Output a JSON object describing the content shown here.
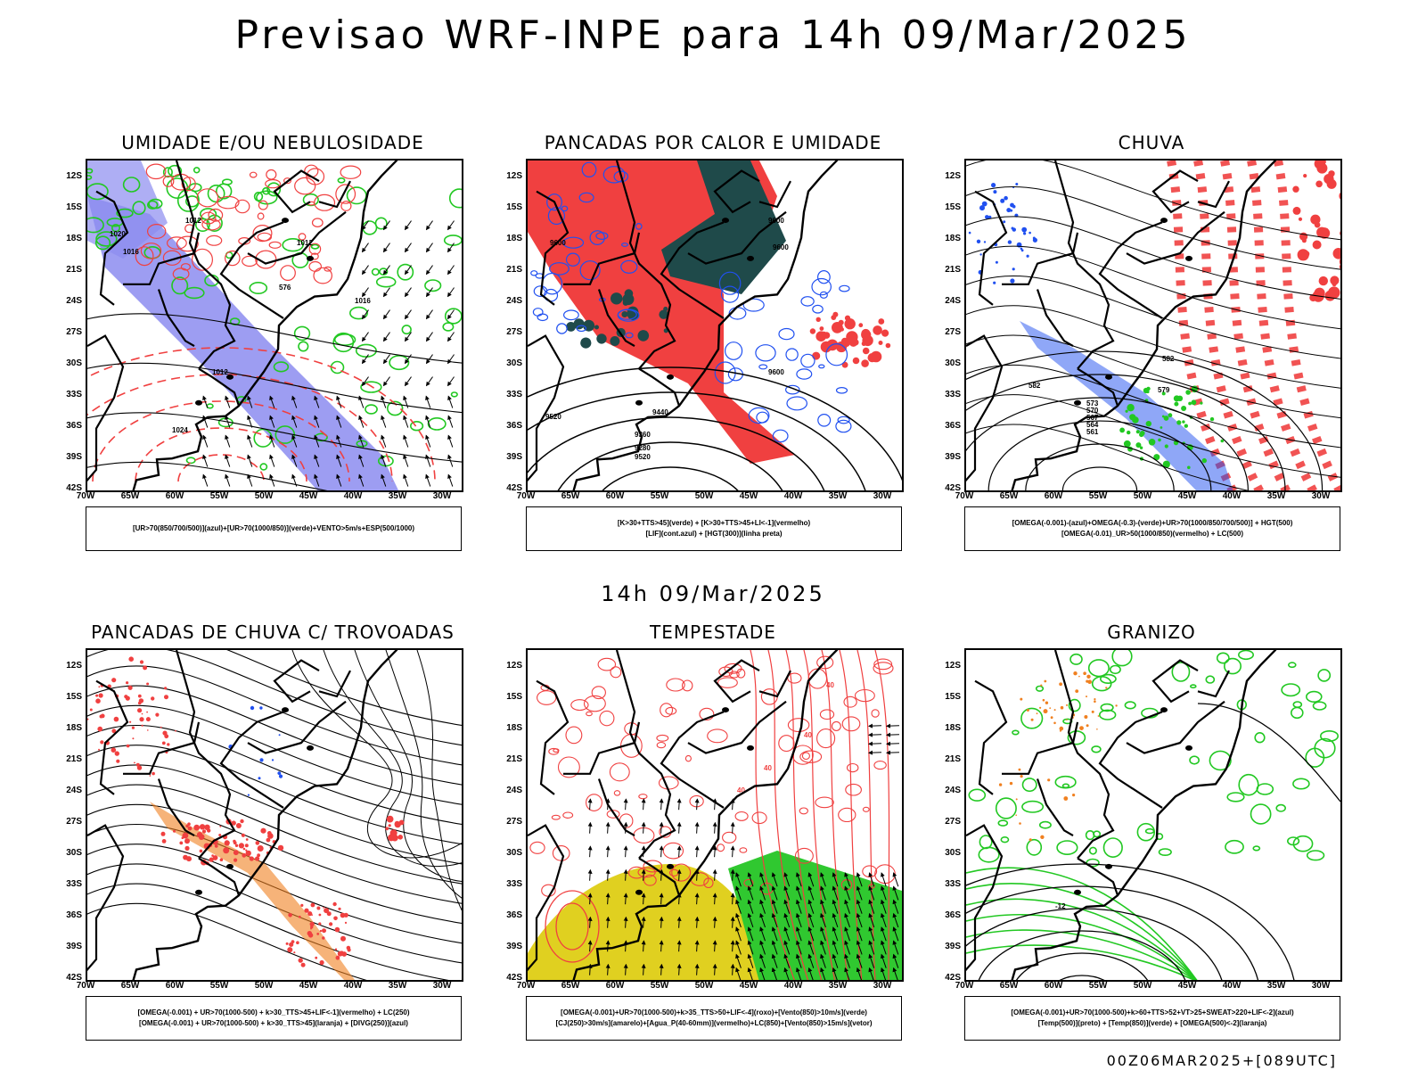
{
  "header": {
    "title": "Previsao WRF-INPE  para 14h 09/Mar/2025"
  },
  "mid_timestamp": "14h 09/Mar/2025",
  "footer": {
    "run_code": "00Z06MAR2025+[089UTC]"
  },
  "axes": {
    "lat_labels": [
      "12S",
      "15S",
      "18S",
      "21S",
      "24S",
      "27S",
      "30S",
      "33S",
      "36S",
      "39S",
      "42S"
    ],
    "lon_labels": [
      "70W",
      "65W",
      "60W",
      "55W",
      "50W",
      "45W",
      "40W",
      "35W",
      "30W"
    ]
  },
  "colors": {
    "blue_humidity": "#8c8cf0",
    "green_contour": "#22c822",
    "red_field": "#f04040",
    "dark_teal": "#1f4a4a",
    "blue_contour": "#2050f0",
    "yellow_jet": "#e0d020",
    "orange_hail": "#f08020"
  },
  "panels": [
    {
      "id": "umidade",
      "title": "UMIDADE E/OU NEBULOSIDADE",
      "legend": [
        "[UR>70(850/700/500)](azul)+[UR>70(1000/850)](verde)+VENTO>5m/s+ESP(500/1000)"
      ],
      "contour_labels": [
        "1012",
        "1012",
        "1016",
        "1020",
        "1024",
        "1012",
        "1016",
        "576"
      ]
    },
    {
      "id": "pancadas_calor",
      "title": "PANCADAS POR CALOR E UMIDADE",
      "legend": [
        "[K>30+TTS>45](verde) + [K>30+TTS>45+LI<-1](vermelho)",
        "[LIF](cont.azul) + [HGT(300)](linha preta)"
      ],
      "contour_labels": [
        "9600",
        "9600",
        "9520",
        "9440",
        "9360",
        "9280",
        "9520",
        "9600",
        "9600"
      ]
    },
    {
      "id": "chuva",
      "title": "CHUVA",
      "legend": [
        "[OMEGA(-0.001)-(azul)+OMEGA(-0.3)-(verde)+UR>70(1000/850/700/500)] + HGT(500)",
        "[OMEGA(-0.01)_UR>50(1000/850)(vermelho) + LC(500)"
      ],
      "contour_labels": [
        "582",
        "582",
        "579",
        "573",
        "570",
        "567",
        "564",
        "561"
      ]
    },
    {
      "id": "pancadas_trovoadas",
      "title": "PANCADAS DE CHUVA C/ TROVOADAS",
      "legend": [
        "[OMEGA(-0.001) + UR>70(1000-500) + k>30_TTS>45+LIF<-1](vermelho) + LC(250)",
        "[OMEGA(-0.001) + UR>70(1000-500) + k>30_TTS>45](laranja) + [DIVG(250)](azul)"
      ],
      "contour_labels": []
    },
    {
      "id": "tempestade",
      "title": "TEMPESTADE",
      "legend": [
        "[OMEGA(-0.001)+UR>70(1000-500)+k>35_TTS>50+LIF<-4](roxo)+[Vento(850)>10m/s](verde)",
        "[CJ(250)>30m/s](amarelo)+[Agua_P(40-60mm)](vermelho)+LC(850)+[Vento(850)>15m/s](vetor)"
      ],
      "contour_labels": [
        "40",
        "40",
        "40",
        "40"
      ]
    },
    {
      "id": "granizo",
      "title": "GRANIZO",
      "legend": [
        "[OMEGA(-0.001)+UR>70(1000-500)+k>60+TTS>52+VT>25+SWEAT>220+LIF<-2](azul)",
        "[Temp(500)](preto) + [Temp(850)](verde) + [OMEGA(500)<-2](laranja)"
      ],
      "contour_labels": [
        "-12"
      ]
    }
  ]
}
